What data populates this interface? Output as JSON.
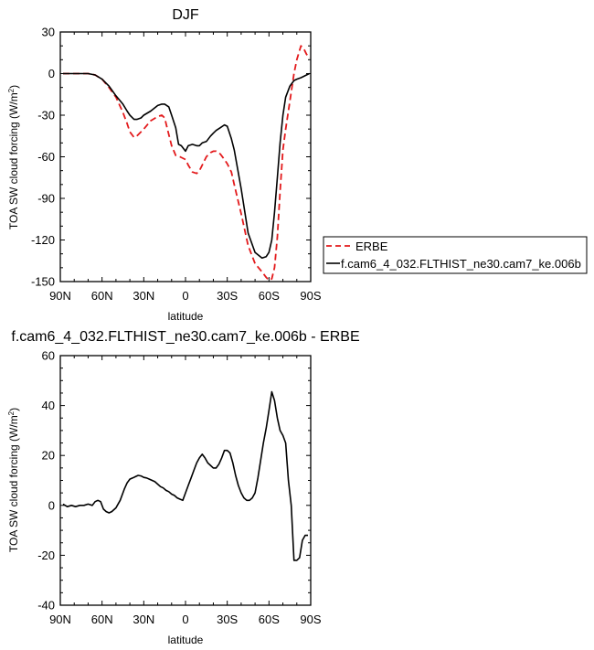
{
  "colors": {
    "erbe": "#e31a1c",
    "model": "#000000"
  },
  "chart_data": [
    {
      "type": "line",
      "title": "DJF",
      "xlabel": "latitude",
      "ylabel": "TOA SW cloud forcing (W/m²)",
      "ylabel_main": "TOA SW cloud forcing (W/m",
      "ylabel_sup": "2",
      "ylabel_end": ")",
      "xlim": [
        90,
        -90
      ],
      "ylim": [
        -150,
        30
      ],
      "x_ticks": [
        90,
        60,
        30,
        0,
        -30,
        -60,
        -90
      ],
      "x_tick_labels": [
        "90N",
        "60N",
        "30N",
        "0",
        "30S",
        "60S",
        "90S"
      ],
      "y_ticks": [
        30,
        0,
        -30,
        -60,
        -90,
        -120,
        -150
      ],
      "y_tick_labels": [
        "30",
        "0",
        "-30",
        "-60",
        "-90",
        "-120",
        "-150"
      ],
      "legend": {
        "placement": "right"
      },
      "series": [
        {
          "name": "ERBE",
          "style": "dashed",
          "color": "#e31a1c",
          "x": [
            88,
            80,
            75,
            70,
            65,
            60,
            55,
            50,
            45,
            42,
            40,
            37,
            35,
            32,
            30,
            25,
            20,
            17,
            15,
            13,
            10,
            7,
            4,
            2,
            0,
            -2,
            -5,
            -8,
            -10,
            -12,
            -15,
            -18,
            -20,
            -22,
            -25,
            -28,
            -30,
            -33,
            -35,
            -40,
            -45,
            -50,
            -55,
            -58,
            -60,
            -62,
            -64,
            -66,
            -68,
            -70,
            -72,
            -75,
            -78,
            -80,
            -83,
            -85,
            -87,
            -89
          ],
          "y": [
            0,
            0,
            0,
            0,
            -1,
            -4,
            -10,
            -17,
            -28,
            -36,
            -42,
            -46,
            -45,
            -42,
            -40,
            -34,
            -31,
            -30,
            -32,
            -40,
            -52,
            -59,
            -60,
            -61,
            -62,
            -66,
            -71,
            -72,
            -70,
            -66,
            -60,
            -57,
            -56,
            -56,
            -58,
            -62,
            -65,
            -71,
            -80,
            -101,
            -124,
            -137,
            -143,
            -147,
            -149,
            -148,
            -140,
            -118,
            -85,
            -55,
            -40,
            -20,
            0,
            10,
            20,
            18,
            14,
            11
          ]
        },
        {
          "name": "f.cam6_4_032.FLTHIST_ne30.cam7_ke.006b",
          "style": "solid",
          "color": "#000000",
          "x": [
            88,
            80,
            75,
            70,
            65,
            60,
            55,
            50,
            45,
            42,
            40,
            37,
            35,
            32,
            30,
            25,
            20,
            17,
            15,
            12,
            10,
            7,
            5,
            3,
            0,
            -2,
            -5,
            -8,
            -10,
            -12,
            -15,
            -18,
            -20,
            -22,
            -25,
            -28,
            -30,
            -33,
            -35,
            -40,
            -45,
            -50,
            -55,
            -58,
            -60,
            -62,
            -64,
            -66,
            -68,
            -70,
            -72,
            -75,
            -78,
            -80,
            -83,
            -85,
            -87,
            -89
          ],
          "y": [
            0,
            0,
            0,
            0,
            -1,
            -4,
            -9,
            -16,
            -22,
            -27,
            -30,
            -33,
            -33,
            -32,
            -30,
            -27,
            -23,
            -22,
            -22,
            -24,
            -30,
            -39,
            -51,
            -52,
            -56,
            -52,
            -51,
            -52,
            -52,
            -50,
            -49,
            -45,
            -43,
            -41,
            -39,
            -37,
            -38,
            -47,
            -55,
            -83,
            -115,
            -129,
            -133,
            -132,
            -129,
            -120,
            -100,
            -75,
            -50,
            -30,
            -17,
            -9,
            -5,
            -4,
            -3,
            -2,
            -1,
            0
          ]
        }
      ]
    },
    {
      "type": "line",
      "title": "f.cam6_4_032.FLTHIST_ne30.cam7_ke.006b - ERBE",
      "xlabel": "latitude",
      "ylabel": "TOA SW cloud forcing (W/m²)",
      "ylabel_main": "TOA SW cloud forcing (W/m",
      "ylabel_sup": "2",
      "ylabel_end": ")",
      "xlim": [
        90,
        -90
      ],
      "ylim": [
        -40,
        60
      ],
      "x_ticks": [
        90,
        60,
        30,
        0,
        -30,
        -60,
        -90
      ],
      "x_tick_labels": [
        "90N",
        "60N",
        "30N",
        "0",
        "30S",
        "60S",
        "90S"
      ],
      "y_ticks": [
        60,
        40,
        20,
        0,
        -20,
        -40
      ],
      "y_tick_labels": [
        "60",
        "40",
        "20",
        "0",
        "-20",
        "-40"
      ],
      "series": [
        {
          "style": "solid",
          "color": "#000000",
          "x": [
            88,
            85,
            82,
            79,
            76,
            73,
            70,
            67,
            65,
            63,
            61,
            59,
            57,
            55,
            53,
            50,
            47,
            44,
            42,
            40,
            38,
            36,
            34,
            32,
            30,
            28,
            26,
            24,
            22,
            20,
            18,
            16,
            14,
            12,
            10,
            8,
            6,
            4,
            2,
            0,
            -2,
            -4,
            -6,
            -8,
            -10,
            -12,
            -14,
            -16,
            -18,
            -20,
            -22,
            -24,
            -26,
            -28,
            -30,
            -32,
            -34,
            -36,
            -38,
            -40,
            -42,
            -44,
            -46,
            -48,
            -50,
            -52,
            -54,
            -56,
            -58,
            -60,
            -62,
            -64,
            -66,
            -68,
            -70,
            -72,
            -74,
            -76,
            -78,
            -80,
            -82,
            -84,
            -86,
            -88
          ],
          "y": [
            0.5,
            -0.5,
            0,
            -0.5,
            0,
            0,
            0.5,
            0,
            1.5,
            2,
            1.5,
            -1.5,
            -2.5,
            -3,
            -2.5,
            -1,
            2,
            6.5,
            9,
            10.5,
            11,
            11.5,
            12,
            11.8,
            11.2,
            11,
            10.5,
            10,
            9.5,
            8.5,
            7.5,
            7,
            6,
            5.5,
            4.5,
            4,
            3,
            2.5,
            2,
            5,
            8,
            11,
            14,
            17,
            19,
            20.5,
            19,
            17,
            16,
            15,
            15,
            16.5,
            19,
            22,
            22,
            21,
            17,
            12,
            8,
            5,
            3,
            2,
            2,
            3,
            5,
            11,
            18,
            25,
            31,
            38,
            45.5,
            42,
            35,
            30,
            28,
            25,
            10,
            0,
            -22,
            -22,
            -21,
            -14,
            -12,
            -12
          ]
        }
      ]
    }
  ]
}
